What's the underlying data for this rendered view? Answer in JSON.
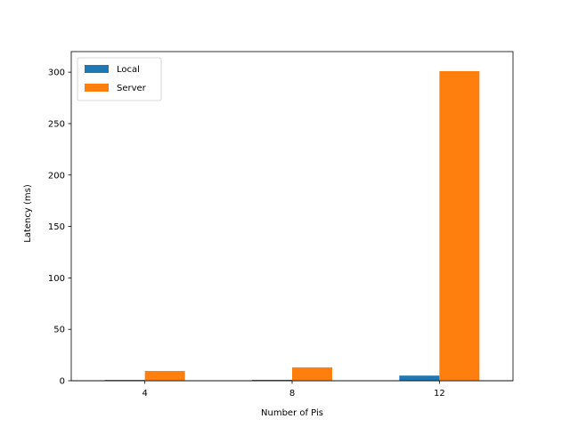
{
  "chart_data": {
    "type": "bar",
    "categories": [
      "4",
      "8",
      "12"
    ],
    "series": [
      {
        "name": "Local",
        "values": [
          0.8,
          0.9,
          5.0
        ],
        "color": "#1f77b4"
      },
      {
        "name": "Server",
        "values": [
          9.5,
          13.0,
          301.0
        ],
        "color": "#ff7f0e"
      }
    ],
    "xlabel": "Number of Pis",
    "ylabel": "Latency (ms)",
    "ylim": [
      0,
      320
    ],
    "yticks": [
      0,
      50,
      100,
      150,
      200,
      250,
      300
    ],
    "ytick_labels": [
      "0",
      "50",
      "100",
      "150",
      "200",
      "250",
      "300"
    ],
    "grid": false,
    "legend_position": "top-left"
  }
}
